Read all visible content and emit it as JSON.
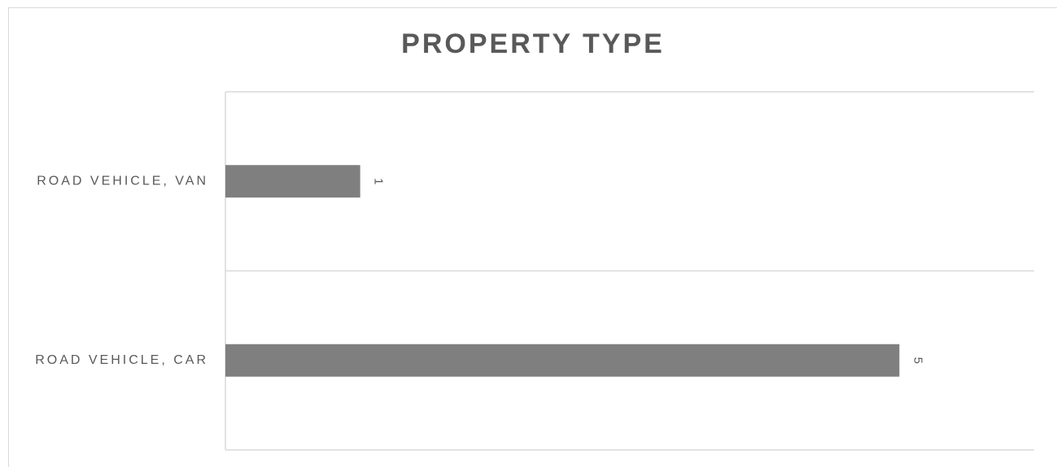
{
  "chart_data": {
    "type": "bar",
    "orientation": "horizontal",
    "title": "PROPERTY TYPE",
    "categories": [
      "ROAD VEHICLE, VAN",
      "ROAD VEHICLE, CAR"
    ],
    "values": [
      1,
      5
    ],
    "color": "#7f7f7f",
    "xlim": [
      0,
      6
    ]
  }
}
